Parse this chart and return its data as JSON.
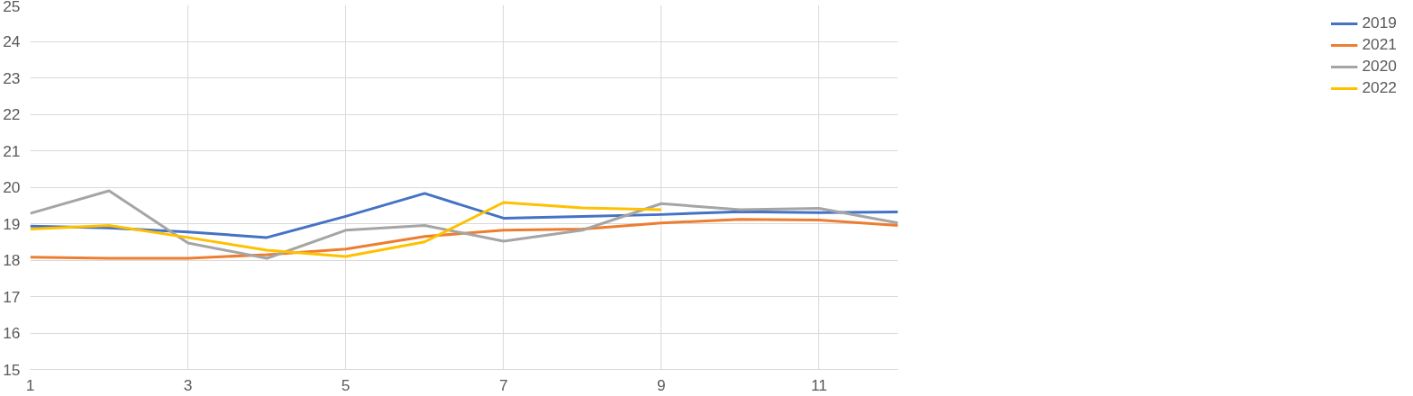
{
  "chart_data": {
    "type": "line",
    "x": [
      1,
      2,
      3,
      4,
      5,
      6,
      7,
      8,
      9,
      10,
      11,
      12
    ],
    "xlim": [
      1,
      12
    ],
    "xticks": [
      1,
      3,
      5,
      7,
      9,
      11
    ],
    "ylim": [
      15,
      25
    ],
    "yticks": [
      15,
      16,
      17,
      18,
      19,
      20,
      21,
      22,
      23,
      24,
      25
    ],
    "grid": true,
    "legend": "right",
    "marker": "none",
    "line_style": "solid",
    "series": [
      {
        "name": "2019",
        "color": "#4472c4",
        "values": [
          18.93,
          18.88,
          18.77,
          18.62,
          19.2,
          19.83,
          19.15,
          19.2,
          19.25,
          19.33,
          19.3,
          19.32
        ]
      },
      {
        "name": "2021",
        "color": "#ed7d31",
        "values": [
          18.08,
          18.05,
          18.05,
          18.15,
          18.3,
          18.65,
          18.82,
          18.85,
          19.02,
          19.12,
          19.1,
          18.95
        ]
      },
      {
        "name": "2020",
        "color": "#a5a5a5",
        "values": [
          19.28,
          19.9,
          18.47,
          18.05,
          18.82,
          18.95,
          18.52,
          18.82,
          19.55,
          19.38,
          19.42,
          19.02
        ]
      },
      {
        "name": "2022",
        "color": "#ffc000",
        "values": [
          18.85,
          18.95,
          18.62,
          18.27,
          18.1,
          18.5,
          19.58,
          19.43,
          19.38,
          null,
          null,
          null
        ]
      }
    ]
  }
}
